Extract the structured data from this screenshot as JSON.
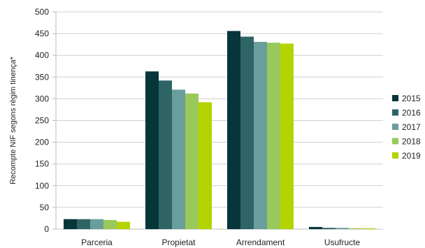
{
  "chart_data": {
    "type": "bar",
    "categories": [
      "Parceria",
      "Propietat",
      "Arrendament",
      "Usufructe"
    ],
    "series": [
      {
        "name": "2015",
        "color": "#06353a",
        "values": [
          23,
          363,
          456,
          5
        ]
      },
      {
        "name": "2016",
        "color": "#2f6466",
        "values": [
          23,
          342,
          443,
          3
        ]
      },
      {
        "name": "2017",
        "color": "#6a9e9c",
        "values": [
          23,
          321,
          431,
          3
        ]
      },
      {
        "name": "2018",
        "color": "#99c95a",
        "values": [
          21,
          312,
          429,
          2
        ]
      },
      {
        "name": "2019",
        "color": "#b4d300",
        "values": [
          17,
          292,
          427,
          2
        ]
      }
    ],
    "title": "",
    "xlabel": "",
    "ylabel": "Recompte NIF segons règim tinença*",
    "ylim": [
      0,
      500
    ],
    "yticks": [
      0,
      50,
      100,
      150,
      200,
      250,
      300,
      350,
      400,
      450,
      500
    ],
    "grid": true,
    "legend_position": "right"
  }
}
